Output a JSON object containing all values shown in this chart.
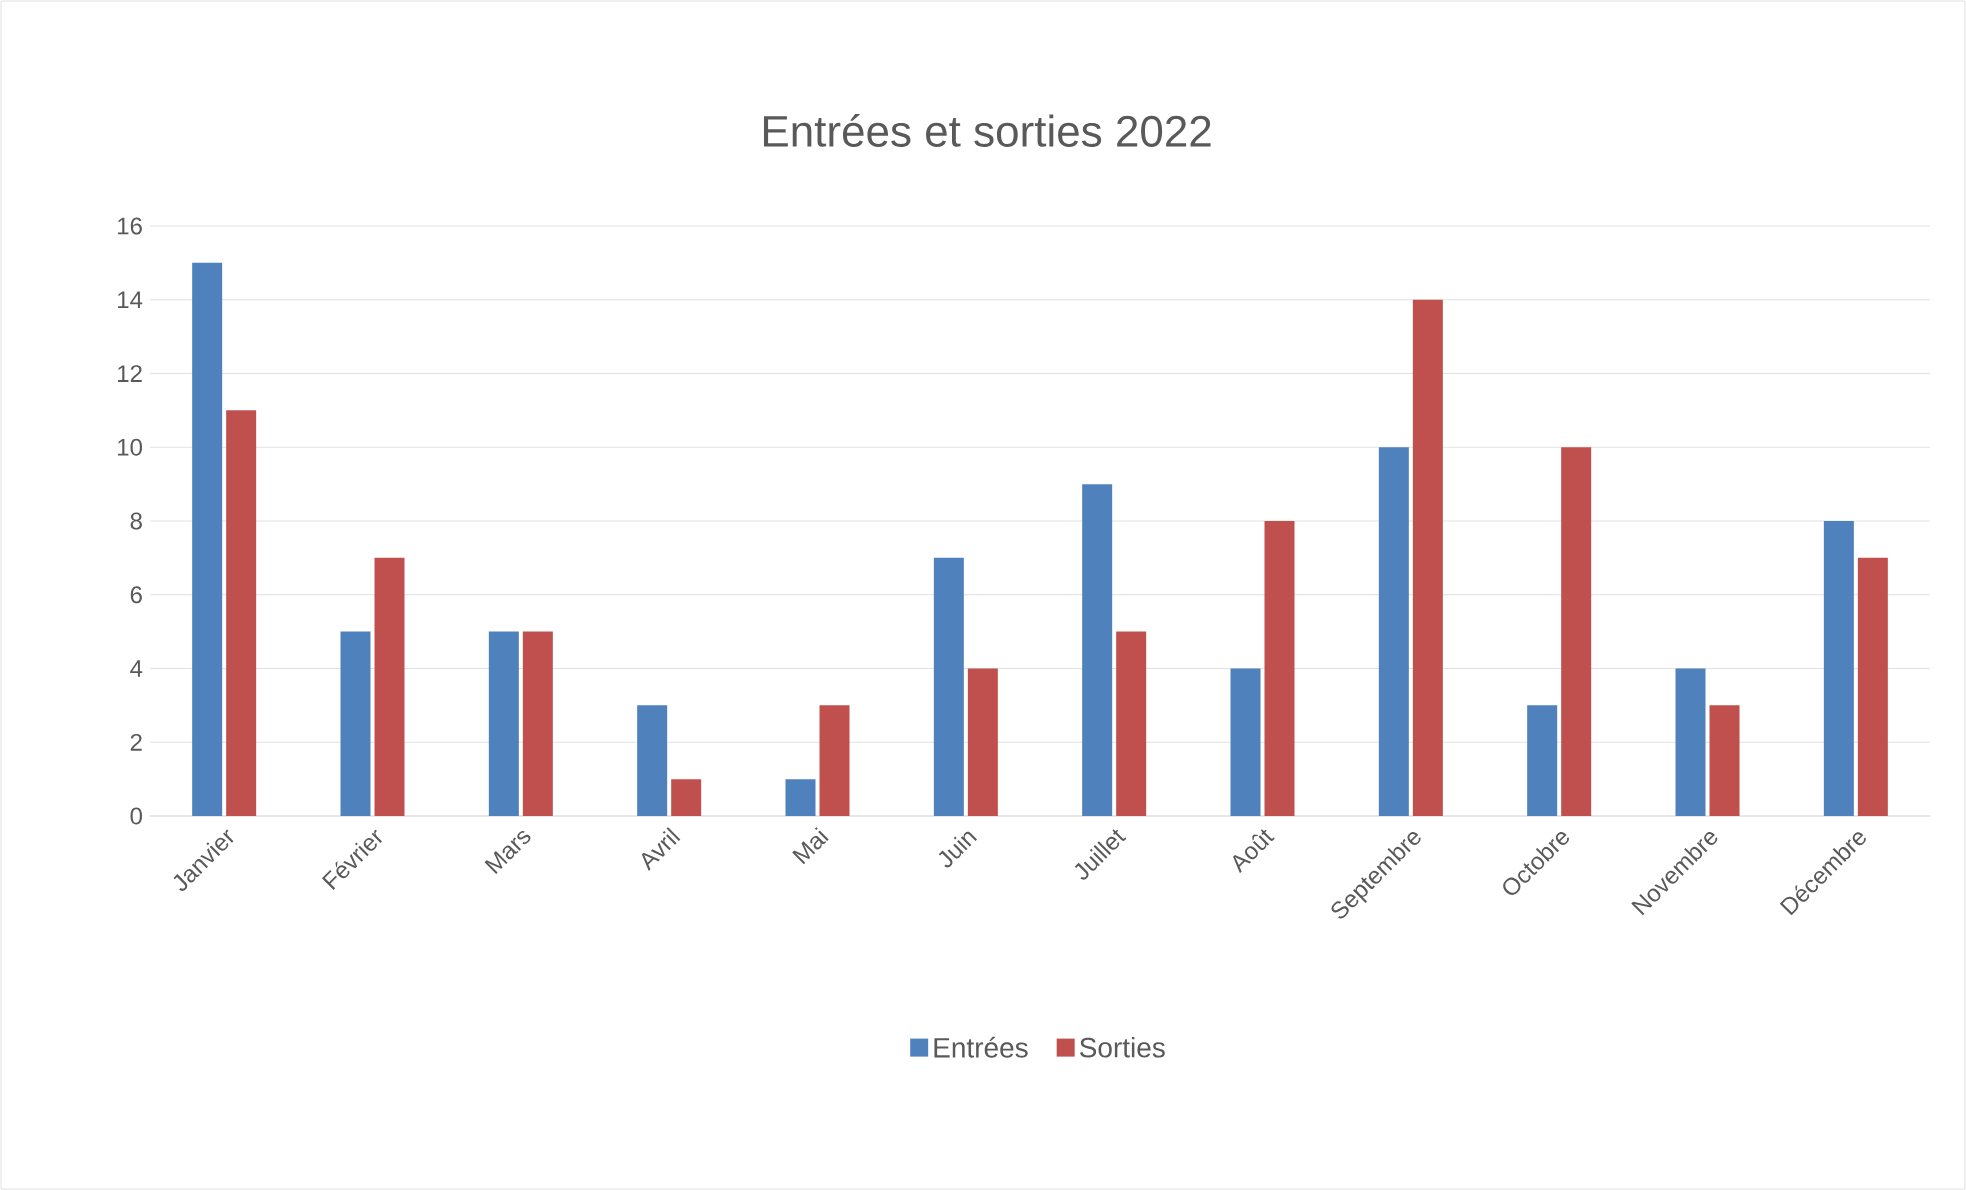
{
  "chart_data": {
    "type": "bar",
    "title": "Entrées et sorties 2022",
    "categories": [
      "Janvier",
      "Février",
      "Mars",
      "Avril",
      "Mai",
      "Juin",
      "Juillet",
      "Août",
      "Septembre",
      "Octobre",
      "Novembre",
      "Décembre"
    ],
    "series": [
      {
        "name": "Entrées",
        "color": "#4f81bd",
        "values": [
          15,
          5,
          5,
          3,
          1,
          7,
          9,
          4,
          10,
          3,
          4,
          8
        ]
      },
      {
        "name": "Sorties",
        "color": "#c0504d",
        "values": [
          11,
          7,
          5,
          1,
          3,
          4,
          5,
          8,
          14,
          10,
          3,
          7
        ]
      }
    ],
    "ylim": [
      0,
      16
    ],
    "yticks": [
      0,
      2,
      4,
      6,
      8,
      10,
      12,
      14,
      16
    ],
    "grid": "y",
    "legend": "bottom"
  }
}
